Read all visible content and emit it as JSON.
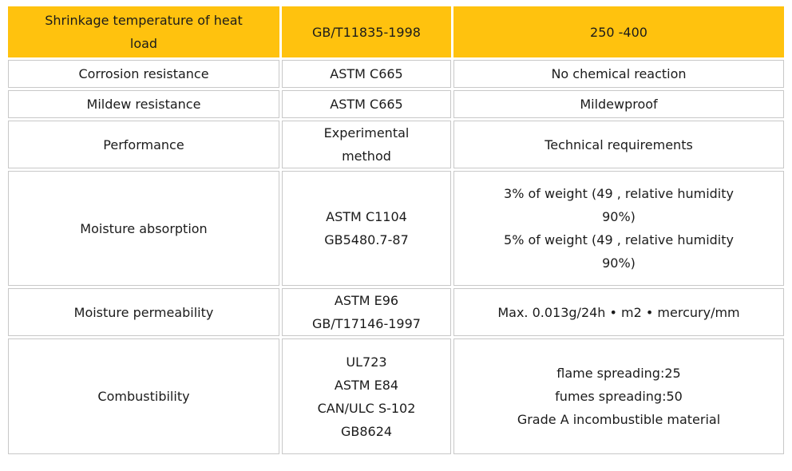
{
  "table": {
    "name": "product-specification-table",
    "colors": {
      "header_background": "#FFC20E",
      "cell_border": "#C8C8C8",
      "text": "#1B1B1B",
      "cell_background": "#FFFFFF"
    },
    "columns": [
      "property",
      "standard",
      "value"
    ],
    "rows": [
      {
        "property": "Shrinkage temperature of heat\nload",
        "standard": "GB/T11835-1998",
        "value": "250 -400"
      },
      {
        "property": "Corrosion resistance",
        "standard": "ASTM C665",
        "value": "No chemical reaction"
      },
      {
        "property": "Mildew resistance",
        "standard": "ASTM C665",
        "value": "Mildewproof"
      },
      {
        "property": "Performance",
        "standard": "Experimental\nmethod",
        "value": "Technical requirements"
      },
      {
        "property": "Moisture absorption",
        "standard": "ASTM C1104\nGB5480.7-87",
        "value": "3% of weight (49 , relative humidity\n90%)\n5% of weight (49 , relative humidity\n90%)"
      },
      {
        "property": "Moisture permeability",
        "standard": "ASTM E96\nGB/T17146-1997",
        "value": "Max. 0.013g/24h • m2 • mercury/mm"
      },
      {
        "property": "Combustibility",
        "standard": "UL723\nASTM E84\nCAN/ULC S-102\nGB8624",
        "value": "flame spreading:25\nfumes spreading:50\nGrade A incombustible material"
      }
    ]
  }
}
